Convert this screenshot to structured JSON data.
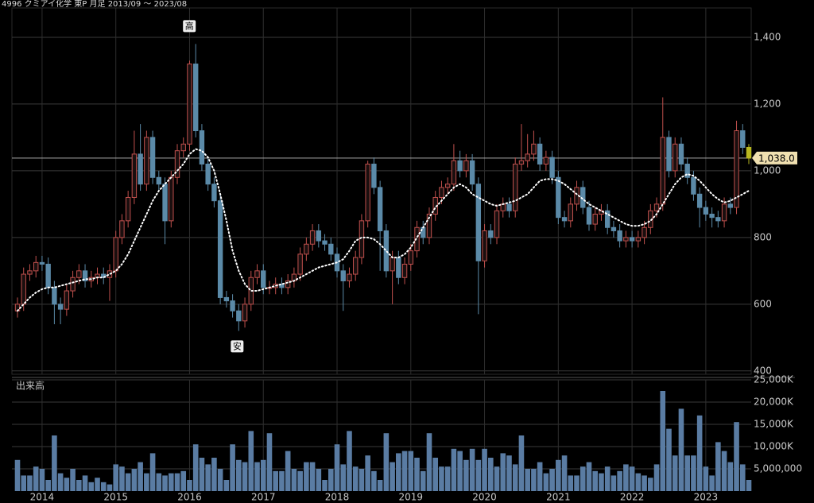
{
  "chart_data": {
    "type": "candlestick",
    "title": "4996 クミアイ化学 東P 月足 2013/09 ～ 2023/08",
    "volume_title": "出来高",
    "xticks": [
      "2014",
      "2015",
      "2016",
      "2017",
      "2018",
      "2019",
      "2020",
      "2021",
      "2022",
      "2023"
    ],
    "open": [
      580,
      600,
      690,
      700,
      725,
      720,
      650,
      600,
      585,
      640,
      680,
      700,
      670,
      680,
      690,
      680,
      700,
      800,
      850,
      920,
      1050,
      960,
      1100,
      980,
      960,
      850,
      980,
      1060,
      1080,
      1320,
      1120,
      1020,
      960,
      910,
      620,
      610,
      580,
      550,
      600,
      680,
      700,
      650,
      650,
      660,
      650,
      670,
      690,
      750,
      780,
      820,
      790,
      780,
      750,
      700,
      670,
      690,
      740,
      850,
      1020,
      950,
      820,
      700,
      740,
      680,
      720,
      760,
      830,
      800,
      870,
      920,
      950,
      960,
      1030,
      1000,
      1030,
      960,
      730,
      820,
      800,
      880,
      900,
      880,
      1020,
      1030,
      1050,
      1080,
      1020,
      1040,
      980,
      860,
      850,
      900,
      950,
      890,
      840,
      870,
      880,
      830,
      820,
      790,
      800,
      790,
      800,
      830,
      880,
      900,
      1100,
      1000,
      1080,
      1020,
      980,
      930,
      890,
      870,
      860,
      850,
      900,
      890,
      1120,
      1070
    ],
    "high": [
      620,
      710,
      720,
      745,
      745,
      740,
      670,
      620,
      660,
      700,
      720,
      720,
      700,
      710,
      710,
      720,
      820,
      870,
      940,
      1120,
      1140,
      1120,
      1120,
      1000,
      980,
      1000,
      1080,
      1100,
      1330,
      1380,
      1140,
      1040,
      980,
      930,
      640,
      630,
      600,
      620,
      700,
      720,
      720,
      670,
      680,
      680,
      690,
      710,
      770,
      800,
      840,
      840,
      810,
      800,
      770,
      720,
      710,
      760,
      870,
      1030,
      1040,
      970,
      840,
      760,
      760,
      740,
      780,
      850,
      850,
      890,
      940,
      970,
      980,
      1080,
      1060,
      1050,
      1050,
      980,
      840,
      840,
      900,
      920,
      920,
      1040,
      1140,
      1110,
      1120,
      1100,
      1060,
      1060,
      1000,
      880,
      920,
      970,
      970,
      910,
      890,
      900,
      900,
      850,
      840,
      820,
      820,
      820,
      850,
      900,
      920,
      1220,
      1120,
      1100,
      1100,
      1040,
      1000,
      950,
      910,
      890,
      880,
      920,
      920,
      1150,
      1140,
      1080
    ],
    "low": [
      560,
      580,
      670,
      680,
      700,
      630,
      540,
      540,
      565,
      620,
      660,
      650,
      650,
      660,
      660,
      610,
      680,
      780,
      830,
      900,
      940,
      940,
      960,
      940,
      780,
      830,
      960,
      1040,
      1060,
      1100,
      1000,
      940,
      890,
      600,
      590,
      560,
      520,
      530,
      580,
      660,
      630,
      630,
      630,
      630,
      630,
      650,
      670,
      730,
      760,
      770,
      760,
      730,
      680,
      580,
      650,
      670,
      720,
      830,
      930,
      700,
      680,
      600,
      660,
      660,
      700,
      740,
      780,
      780,
      850,
      900,
      930,
      940,
      980,
      980,
      940,
      570,
      710,
      780,
      780,
      860,
      860,
      860,
      1000,
      1010,
      1030,
      1000,
      1000,
      960,
      840,
      830,
      830,
      880,
      870,
      820,
      820,
      850,
      810,
      800,
      770,
      770,
      770,
      770,
      780,
      810,
      860,
      880,
      980,
      980,
      1000,
      960,
      910,
      830,
      850,
      830,
      830,
      830,
      870,
      870,
      1050,
      1020
    ],
    "close": [
      600,
      690,
      700,
      725,
      720,
      650,
      600,
      585,
      640,
      680,
      700,
      670,
      680,
      690,
      680,
      700,
      800,
      850,
      920,
      1050,
      960,
      1100,
      980,
      960,
      850,
      980,
      1060,
      1080,
      1320,
      1120,
      1020,
      960,
      910,
      620,
      610,
      580,
      550,
      600,
      680,
      700,
      650,
      650,
      660,
      650,
      670,
      690,
      750,
      780,
      820,
      790,
      780,
      750,
      700,
      670,
      690,
      740,
      850,
      1020,
      950,
      820,
      700,
      740,
      680,
      720,
      760,
      830,
      800,
      870,
      920,
      950,
      960,
      1030,
      1000,
      1030,
      960,
      730,
      820,
      800,
      880,
      900,
      880,
      1020,
      1030,
      1050,
      1080,
      1020,
      1040,
      980,
      860,
      850,
      900,
      950,
      890,
      840,
      870,
      880,
      830,
      820,
      790,
      800,
      790,
      800,
      830,
      880,
      900,
      1100,
      1000,
      1080,
      1020,
      980,
      930,
      890,
      870,
      860,
      850,
      900,
      890,
      1120,
      1070,
      1038
    ],
    "moving_average": [
      580,
      600,
      620,
      635,
      645,
      650,
      650,
      655,
      660,
      665,
      670,
      675,
      675,
      680,
      680,
      690,
      700,
      720,
      750,
      790,
      830,
      870,
      910,
      940,
      960,
      980,
      1000,
      1020,
      1050,
      1065,
      1060,
      1040,
      1000,
      930,
      850,
      760,
      700,
      660,
      640,
      640,
      645,
      650,
      655,
      660,
      665,
      670,
      680,
      690,
      700,
      710,
      715,
      720,
      725,
      735,
      760,
      790,
      800,
      800,
      795,
      780,
      760,
      740,
      740,
      750,
      770,
      800,
      830,
      860,
      890,
      910,
      930,
      950,
      960,
      950,
      930,
      920,
      910,
      900,
      895,
      900,
      905,
      910,
      920,
      930,
      950,
      970,
      975,
      975,
      970,
      960,
      945,
      930,
      915,
      900,
      890,
      880,
      870,
      860,
      850,
      840,
      835,
      835,
      840,
      850,
      870,
      900,
      930,
      960,
      980,
      990,
      985,
      970,
      950,
      930,
      915,
      905,
      910,
      920,
      930,
      940
    ],
    "volume": [
      7000000,
      3500000,
      3500000,
      5500000,
      5000000,
      2500000,
      12500000,
      4000000,
      3000000,
      5000000,
      2500000,
      3500000,
      2000000,
      3000000,
      2000000,
      1500000,
      6000000,
      5500000,
      4000000,
      5000000,
      6500000,
      4000000,
      8500000,
      4000000,
      3500000,
      4000000,
      4000000,
      4500000,
      2500000,
      10500000,
      7500000,
      6000000,
      7500000,
      5000000,
      2500000,
      10500000,
      7000000,
      6500000,
      13500000,
      6500000,
      7000000,
      13000000,
      4500000,
      4500000,
      9000000,
      5000000,
      4500000,
      6500000,
      6500000,
      5000000,
      2500000,
      5000000,
      10500000,
      6000000,
      13500000,
      5500000,
      5000000,
      8000000,
      4500000,
      2500000,
      13000000,
      6500000,
      8500000,
      9000000,
      9000000,
      7500000,
      4500000,
      13000000,
      7500000,
      5500000,
      5500000,
      9500000,
      9000000,
      7000000,
      9500000,
      7000000,
      9500000,
      7500000,
      5500000,
      8500000,
      8000000,
      6000000,
      12500000,
      5000000,
      5000000,
      6500000,
      4000000,
      5000000,
      7000000,
      8000000,
      3500000,
      3500000,
      5500000,
      6500000,
      4500000,
      4000000,
      5500000,
      3500000,
      4500000,
      6000000,
      5500000,
      4000000,
      3500000,
      3000000,
      6000000,
      22500000,
      14000000,
      8000000,
      18500000,
      8000000,
      8000000,
      17000000,
      5500000,
      3500000,
      11000000,
      9000000,
      6500000,
      15500000,
      6000000,
      2500000
    ],
    "ylim": [
      390,
      1488
    ],
    "yticks": [
      {
        "value": 400,
        "label": "400"
      },
      600,
      800,
      {
        "value": 1000,
        "label": "1,000"
      },
      {
        "value": 1200,
        "label": "1,200"
      },
      {
        "value": 1400,
        "label": "1,400"
      }
    ],
    "volume_ylim": [
      0,
      25000000
    ],
    "volume_yticks": [
      {
        "value": 5000000,
        "label": "5,000,000"
      },
      {
        "value": 10000000,
        "label": "10,000K"
      },
      {
        "value": 15000000,
        "label": "15,000K"
      },
      {
        "value": 20000000,
        "label": "20,000K"
      },
      {
        "value": 25000000,
        "label": "25,000K"
      }
    ],
    "last_price": 1038.0,
    "last_price_label": "1,038.0",
    "high_label": "高",
    "low_label": "安",
    "up_color": "#c0504d",
    "down_color": "#5b8aa8",
    "last_color": "#b8b820",
    "ma_color": "#ffffff",
    "volume_color": "#5a7ca3",
    "grid": true
  }
}
